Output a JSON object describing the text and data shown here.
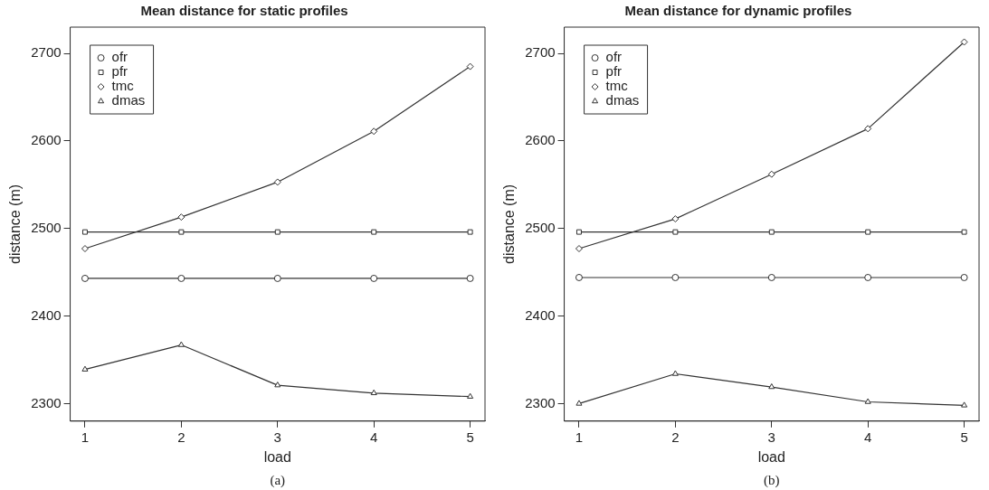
{
  "chart_data": [
    {
      "type": "line",
      "title": "Mean distance for static profiles",
      "xlabel": "load",
      "ylabel": "distance (m)",
      "annotations": [
        "(a)"
      ],
      "x": [
        1,
        2,
        3,
        4,
        5
      ],
      "xlim": [
        0.846,
        5.154
      ],
      "xticks": [
        1,
        2,
        3,
        4,
        5
      ],
      "ylim": [
        2280,
        2730
      ],
      "yticks": [
        2300,
        2400,
        2500,
        2600,
        2700
      ],
      "grid": false,
      "legend": "top left",
      "line_style": "solid",
      "series": [
        {
          "name": "ofr",
          "color": "#333333",
          "marker": "circle",
          "values": [
            2443,
            2443,
            2443,
            2443,
            2443
          ]
        },
        {
          "name": "pfr",
          "color": "#333333",
          "marker": "square",
          "values": [
            2496,
            2496,
            2496,
            2496,
            2496
          ]
        },
        {
          "name": "tmc",
          "color": "#333333",
          "marker": "diamond",
          "values": [
            2477,
            2513,
            2553,
            2611,
            2685
          ]
        },
        {
          "name": "dmas",
          "color": "#333333",
          "marker": "triangle",
          "values": [
            2339,
            2367,
            2321,
            2312,
            2308
          ]
        }
      ]
    },
    {
      "type": "line",
      "title": "Mean distance for dynamic profiles",
      "xlabel": "load",
      "ylabel": "distance (m)",
      "annotations": [
        "(b)"
      ],
      "x": [
        1,
        2,
        3,
        4,
        5
      ],
      "xlim": [
        0.846,
        5.154
      ],
      "xticks": [
        1,
        2,
        3,
        4,
        5
      ],
      "ylim": [
        2280,
        2730
      ],
      "yticks": [
        2300,
        2400,
        2500,
        2600,
        2700
      ],
      "grid": false,
      "legend": "top left",
      "line_style": "solid",
      "series": [
        {
          "name": "ofr",
          "color": "#333333",
          "marker": "circle",
          "values": [
            2444,
            2444,
            2444,
            2444,
            2444
          ]
        },
        {
          "name": "pfr",
          "color": "#333333",
          "marker": "square",
          "values": [
            2496,
            2496,
            2496,
            2496,
            2496
          ]
        },
        {
          "name": "tmc",
          "color": "#333333",
          "marker": "diamond",
          "values": [
            2477,
            2511,
            2562,
            2614,
            2713
          ]
        },
        {
          "name": "dmas",
          "color": "#333333",
          "marker": "triangle",
          "values": [
            2300,
            2334,
            2319,
            2302,
            2298
          ]
        }
      ]
    }
  ]
}
